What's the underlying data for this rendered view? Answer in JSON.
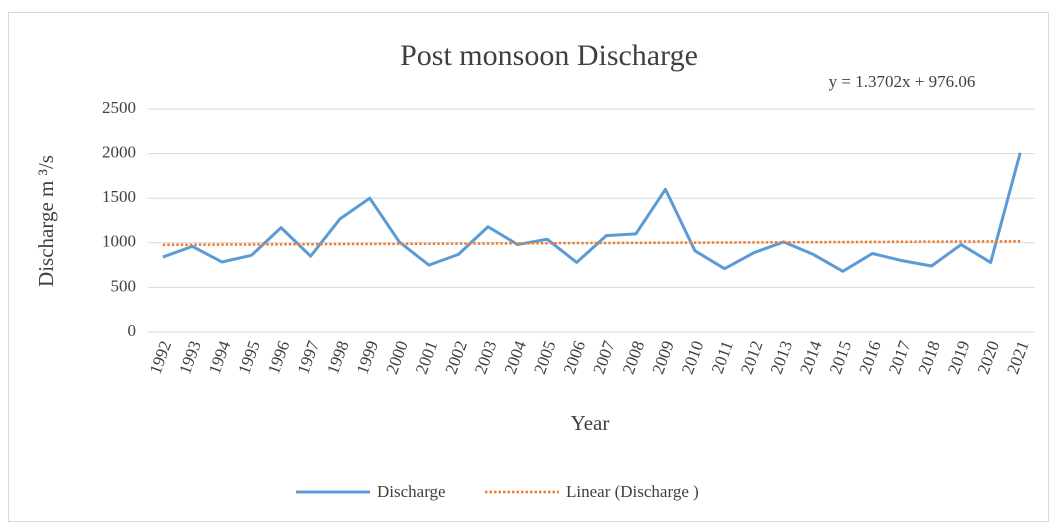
{
  "chart_data": {
    "type": "line",
    "title": "Post monsoon Discharge",
    "annotation": "y = 1.3702x + 976.06",
    "x_label": "Year",
    "y_label": "Discharge m ³/s",
    "categories": [
      "1992",
      "1993",
      "1994",
      "1995",
      "1996",
      "1997",
      "1998",
      "1999",
      "2000",
      "2001",
      "2002",
      "2003",
      "2004",
      "2005",
      "2006",
      "2007",
      "2008",
      "2009",
      "2010",
      "2011",
      "2012",
      "2013",
      "2014",
      "2015",
      "2016",
      "2017",
      "2018",
      "2019",
      "2020",
      "2021"
    ],
    "series": [
      {
        "name": "Discharge",
        "color": "#5b9bd5",
        "style": "solid",
        "values": [
          840,
          960,
          785,
          860,
          1170,
          850,
          1270,
          1500,
          1010,
          750,
          870,
          1180,
          980,
          1040,
          780,
          1080,
          1100,
          1600,
          910,
          710,
          890,
          1010,
          870,
          680,
          880,
          800,
          740,
          980,
          780,
          2010
        ]
      },
      {
        "name": "Linear (Discharge )",
        "color": "#ed7d31",
        "style": "dotted",
        "values": [
          977.43,
          978.8,
          980.17,
          981.54,
          982.91,
          984.28,
          985.65,
          987.02,
          988.39,
          989.76,
          991.13,
          992.5,
          993.87,
          995.24,
          996.61,
          997.98,
          999.35,
          1000.72,
          1002.09,
          1003.46,
          1004.83,
          1006.2,
          1007.57,
          1008.94,
          1010.32,
          1011.69,
          1013.06,
          1014.43,
          1015.8,
          1017.17
        ]
      }
    ],
    "ylim": [
      0,
      2500
    ],
    "yticks": [
      0,
      500,
      1000,
      1500,
      2000,
      2500
    ],
    "grid": true,
    "legend": "bottom"
  }
}
